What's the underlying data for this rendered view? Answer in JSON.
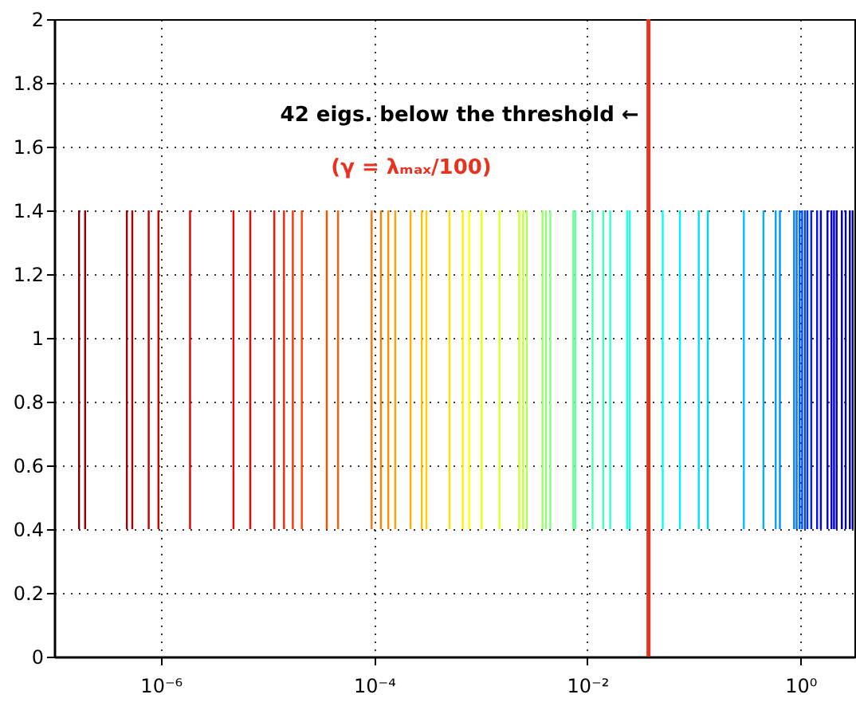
{
  "chart_data": {
    "type": "bar",
    "log": "x",
    "x": [
      1.71e-07,
      1.95e-07,
      4.8e-07,
      5.4e-07,
      7.7e-07,
      9.5e-07,
      1.88e-06,
      4.8e-06,
      6.9e-06,
      1.16e-05,
      1.43e-05,
      1.73e-05,
      2.1e-05,
      3.6e-05,
      4.6e-05,
      9.5e-05,
      0.000116,
      0.000136,
      0.000158,
      0.00022,
      0.00028,
      0.00031,
      0.00051,
      0.00068,
      0.00078,
      0.00102,
      0.0015,
      0.0023,
      0.0025,
      0.0027,
      0.0038,
      0.0041,
      0.0045,
      0.0074,
      0.0077,
      0.0112,
      0.0141,
      0.0164,
      0.0236,
      0.025,
      0.051,
      0.074,
      0.111,
      0.135,
      0.294,
      0.449,
      0.585,
      0.64,
      0.87,
      0.92,
      0.98,
      1.035,
      1.1,
      1.16,
      1.26,
      1.43,
      1.55,
      1.79,
      1.95,
      2.06,
      2.18,
      2.44,
      2.65,
      2.9,
      3.08
    ],
    "base": [
      0.4,
      0.4,
      0.4,
      0.4,
      0.4,
      0.4,
      0.4,
      0.4,
      0.4,
      0.4,
      0.4,
      0.4,
      0.4,
      0.4,
      0.4,
      0.4,
      0.4,
      0.4,
      0.4,
      0.4,
      0.4,
      0.4,
      0.4,
      0.4,
      0.4,
      0.4,
      0.4,
      0.4,
      0.4,
      0.4,
      0.4,
      0.4,
      0.4,
      0.4,
      0.4,
      0.4,
      0.4,
      0.4,
      0.4,
      0.4,
      0.4,
      0.4,
      0.4,
      0.4,
      0.4,
      0.4,
      0.4,
      0.4,
      0.4,
      0.4,
      0.4,
      0.4,
      0.4,
      0.4,
      0.4,
      0.4,
      0.4,
      0.4,
      0.4,
      0.4,
      0.4,
      0.4,
      0.4,
      0.4,
      0.4
    ],
    "values": [
      1,
      1,
      1,
      1,
      1,
      1,
      1,
      1,
      1,
      1,
      1,
      1,
      1,
      1,
      1,
      1,
      1,
      1,
      1,
      1,
      1,
      1,
      1,
      1,
      1,
      1,
      1,
      1,
      1,
      1,
      1,
      1,
      1,
      1,
      1,
      1,
      1,
      1,
      1,
      1,
      1,
      1,
      1,
      1,
      1,
      1,
      1,
      1,
      1,
      1,
      1,
      1,
      1,
      1,
      1,
      1,
      1,
      1,
      1,
      1,
      1,
      1,
      1,
      1,
      1
    ],
    "colors": [
      "#800000",
      "#900000",
      "#a00000",
      "#b00000",
      "#bf0000",
      "#cf0000",
      "#df0000",
      "#ef0000",
      "#ff0000",
      "#ff1000",
      "#ff2000",
      "#ff3000",
      "#ff4000",
      "#ff5000",
      "#ff6000",
      "#ff7000",
      "#ff8000",
      "#ff8f00",
      "#ff9f00",
      "#ffaf00",
      "#ffbf00",
      "#ffcf00",
      "#ffdf00",
      "#ffef00",
      "#ffff00",
      "#efff10",
      "#dfff20",
      "#cfff30",
      "#bfff40",
      "#afff50",
      "#9fff60",
      "#8fff70",
      "#80ff80",
      "#70ff8f",
      "#60ff9f",
      "#50ffaf",
      "#40ffbf",
      "#30ffcf",
      "#20ffdf",
      "#10ffef",
      "#00ffff",
      "#00efff",
      "#00dfff",
      "#00cfff",
      "#00bfff",
      "#00afff",
      "#009fff",
      "#008fff",
      "#0080ff",
      "#0070ff",
      "#0060ff",
      "#0050ff",
      "#0040ff",
      "#0030ff",
      "#0020ff",
      "#0010ff",
      "#0000ff",
      "#0000ef",
      "#0000df",
      "#0000cf",
      "#0000bf",
      "#0000af",
      "#00009f",
      "#00008f",
      "#000080"
    ],
    "xlim": [
      1e-07,
      3.2
    ],
    "xticks": [
      {
        "value": 1e-06,
        "label": "10⁻⁶"
      },
      {
        "value": 0.0001,
        "label": "10⁻⁴"
      },
      {
        "value": 0.01,
        "label": "10⁻²"
      },
      {
        "value": 1,
        "label": "10⁰"
      }
    ],
    "ylim": [
      0,
      2
    ],
    "yticks": [
      0,
      0.2,
      0.4,
      0.6,
      0.8,
      1,
      1.2,
      1.4,
      1.6,
      1.8,
      2
    ],
    "grid": true,
    "ref_lines": [
      {
        "axis": "x",
        "value": 0.0375,
        "color": "#e8321e"
      }
    ],
    "annotations": [
      {
        "text": "42 eigs. below the threshold ←",
        "x": 0.0375,
        "y": 1.7
      },
      "(γ = λₘₐₓ/100)"
    ]
  }
}
